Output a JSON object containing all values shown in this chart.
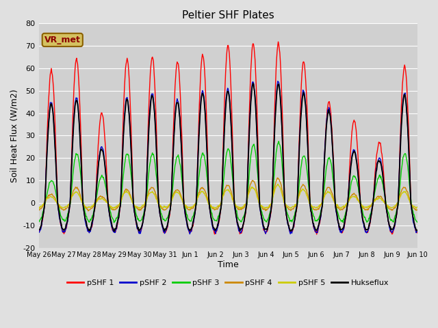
{
  "title": "Peltier SHF Plates",
  "xlabel": "Time",
  "ylabel": "Soil Heat Flux (W/m2)",
  "ylim": [
    -20,
    80
  ],
  "fig_bg_color": "#e0e0e0",
  "plot_bg_color": "#d0d0d0",
  "grid_color": "#ffffff",
  "annotation_text": "VR_met",
  "annotation_bg": "#d4c060",
  "annotation_fg": "#8b0000",
  "annotation_edge": "#8b6000",
  "series_colors": {
    "pSHF 1": "#ff0000",
    "pSHF 2": "#0000cc",
    "pSHF 3": "#00cc00",
    "pSHF 4": "#cc8800",
    "pSHF 5": "#cccc00",
    "Hukseflux": "#000000"
  },
  "xtick_labels": [
    "May 26",
    "May 27",
    "May 28",
    "May 29",
    "May 30",
    "May 31",
    "Jun 1",
    "Jun 2",
    "Jun 3",
    "Jun 4",
    "Jun 5",
    "Jun 6",
    "Jun 7",
    "Jun 8",
    "Jun 9",
    "Jun 10"
  ],
  "ytick_labels": [
    "-20",
    "-10",
    "0",
    "10",
    "20",
    "30",
    "40",
    "50",
    "60",
    "70",
    "80"
  ],
  "ytick_vals": [
    -20,
    -10,
    0,
    10,
    20,
    30,
    40,
    50,
    60,
    70,
    80
  ],
  "n_days": 15,
  "pts_per_day": 48,
  "pshf1_peaks": [
    59,
    64,
    40,
    64,
    65,
    63,
    66,
    70,
    71,
    71,
    63,
    45,
    37,
    27,
    61
  ],
  "pshf2_peaks": [
    45,
    47,
    25,
    47,
    49,
    46,
    50,
    51,
    54,
    54,
    50,
    42,
    24,
    20,
    49
  ],
  "pshf3_peaks": [
    10,
    22,
    12,
    22,
    22,
    21,
    22,
    24,
    26,
    27,
    21,
    20,
    12,
    12,
    22
  ],
  "pshf4_peaks": [
    4,
    7,
    3,
    6,
    7,
    6,
    7,
    8,
    10,
    11,
    8,
    7,
    4,
    3,
    7
  ],
  "pshf5_peaks": [
    3,
    5,
    2,
    5,
    5,
    5,
    5,
    6,
    7,
    8,
    6,
    5,
    3,
    2,
    5
  ],
  "hukseflux_peaks": [
    44,
    46,
    24,
    46,
    48,
    45,
    49,
    50,
    53,
    53,
    49,
    41,
    23,
    19,
    48
  ],
  "pshf1_neg": -13,
  "pshf2_neg": -13,
  "pshf3_neg": -8,
  "pshf4_neg": -3,
  "pshf5_neg": -2,
  "hukseflux_neg": -12
}
